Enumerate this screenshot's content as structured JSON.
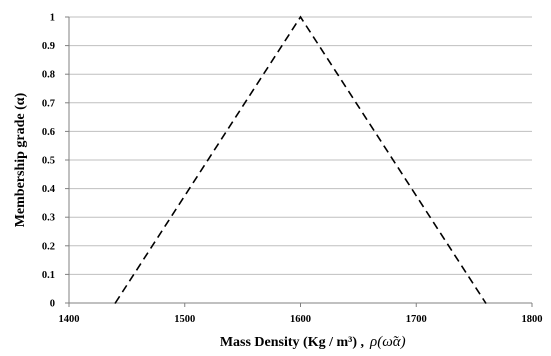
{
  "chart_data": {
    "type": "line",
    "title": "",
    "xlabel": "Mass Density (Kg / m³) ,",
    "xlabel_math": "ρ(ω̃α)",
    "ylabel": "Membership grade (α)",
    "xlim": [
      1400,
      1800
    ],
    "ylim": [
      0,
      1
    ],
    "x_ticks": [
      "1400",
      "1500",
      "1600",
      "1700",
      "1800"
    ],
    "y_ticks": [
      "0",
      "0.1",
      "0.2",
      "0.3",
      "0.4",
      "0.5",
      "0.6",
      "0.7",
      "0.8",
      "0.9",
      "1"
    ],
    "grid": true,
    "legend": "none",
    "series": [
      {
        "x": [
          1440,
          1600,
          1760
        ],
        "y": [
          0,
          1,
          0
        ],
        "style": "dashed",
        "color": "#000000"
      }
    ]
  }
}
